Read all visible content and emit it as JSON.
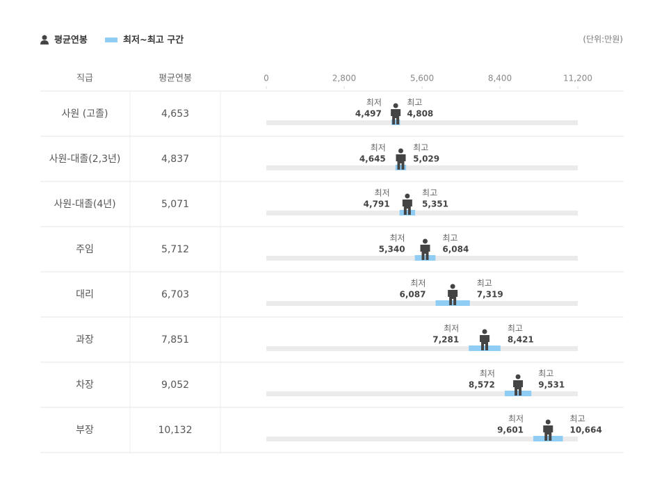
{
  "chart_data": {
    "type": "range",
    "unit": "(단위:만원)",
    "column_headers": [
      "직급",
      "평균연봉"
    ],
    "categories": [
      "사원 (고졸)",
      "사원-대졸(2,3년)",
      "사원-대졸(4년)",
      "주임",
      "대리",
      "과장",
      "차장",
      "부장"
    ],
    "series": [
      {
        "name": "평균연봉",
        "color": "#444444",
        "values": [
          4653,
          4837,
          5071,
          5712,
          6703,
          7851,
          9052,
          10132
        ],
        "value_labels": [
          "4,653",
          "4,837",
          "5,071",
          "5,712",
          "6,703",
          "7,851",
          "9,052",
          "10,132"
        ]
      },
      {
        "name": "최저~최고 구간",
        "color": "#8fcdf5",
        "min_label": "최저",
        "max_label": "최고",
        "min": [
          4497,
          4645,
          4791,
          5340,
          6087,
          7281,
          8572,
          9601
        ],
        "min_labels": [
          "4,497",
          "4,645",
          "4,791",
          "5,340",
          "6,087",
          "7,281",
          "8,572",
          "9,601"
        ],
        "max": [
          4808,
          5029,
          5351,
          6084,
          7319,
          8421,
          9531,
          10664
        ],
        "max_labels": [
          "4,808",
          "5,029",
          "5,351",
          "6,084",
          "7,319",
          "8,421",
          "9,531",
          "10,664"
        ]
      }
    ],
    "xlim": [
      0,
      11200
    ],
    "xticks": [
      0,
      {
        "value": 2800,
        "label": "2,800"
      },
      {
        "value": 5600,
        "label": "5,600"
      },
      {
        "value": 8400,
        "label": "8,400"
      },
      {
        "value": 11200,
        "label": "11,200"
      }
    ]
  }
}
